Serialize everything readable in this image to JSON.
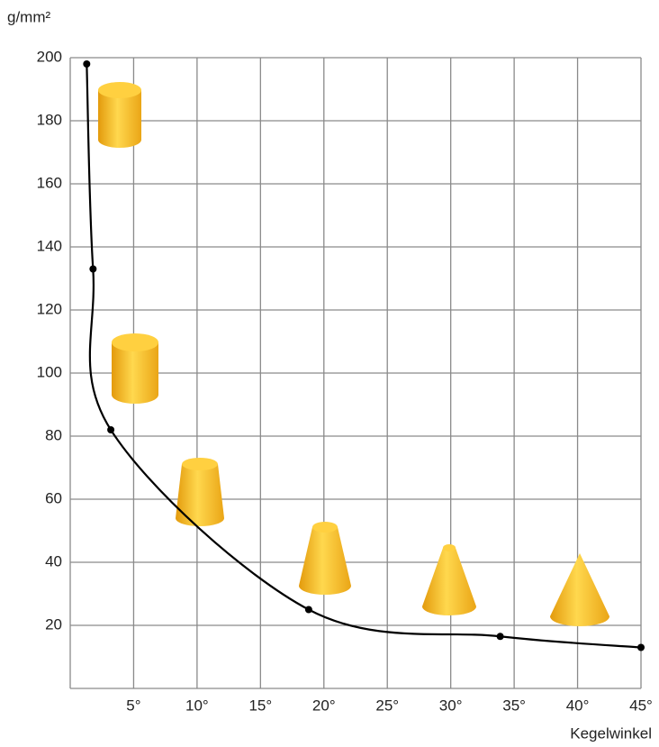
{
  "chart_data": {
    "type": "line",
    "y_label": "g/mm²",
    "x_label": "Kegelwinkel",
    "x": [
      1.3,
      1.8,
      3.2,
      18.8,
      33.9,
      45
    ],
    "series": [
      {
        "color": "#000000",
        "values": [
          198,
          133,
          82,
          25,
          16.5,
          13
        ]
      }
    ],
    "xlim": [
      0,
      45
    ],
    "xticks": [
      {
        "value": 5,
        "label": "5°"
      },
      {
        "value": 10,
        "label": "10°"
      },
      {
        "value": 15,
        "label": "15°"
      },
      {
        "value": 20,
        "label": "20°"
      },
      {
        "value": 25,
        "label": "25°"
      },
      {
        "value": 30,
        "label": "30°"
      },
      {
        "value": 35,
        "label": "35°"
      },
      {
        "value": 40,
        "label": "40°"
      },
      {
        "value": 45,
        "label": "45°"
      }
    ],
    "ylim": [
      0,
      200
    ],
    "yticks": [
      20,
      40,
      60,
      80,
      100,
      120,
      140,
      160,
      180,
      200
    ],
    "grid": true,
    "markers": true,
    "smooth": true
  }
}
